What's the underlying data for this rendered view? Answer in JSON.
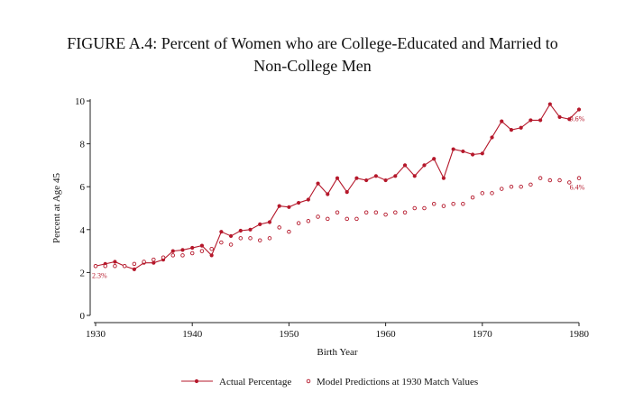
{
  "figure": {
    "title_line1": "FIGURE A.4: Percent of Women who are College-Educated and Married to",
    "title_line2": "Non-College Men"
  },
  "colors": {
    "series": "#b5182b",
    "axis": "#222222",
    "text": "#111111"
  },
  "chart_data": {
    "type": "line",
    "xlabel": "Birth Year",
    "ylabel": "Percent at Age 45",
    "xlim": [
      1930,
      1980
    ],
    "ylim": [
      0,
      10
    ],
    "xticks": [
      1930,
      1940,
      1950,
      1960,
      1970,
      1980
    ],
    "yticks": [
      0,
      2,
      4,
      6,
      8,
      10
    ],
    "grid": false,
    "legend_position": "bottom",
    "x": [
      1930,
      1931,
      1932,
      1933,
      1934,
      1935,
      1936,
      1937,
      1938,
      1939,
      1940,
      1941,
      1942,
      1943,
      1944,
      1945,
      1946,
      1947,
      1948,
      1949,
      1950,
      1951,
      1952,
      1953,
      1954,
      1955,
      1956,
      1957,
      1958,
      1959,
      1960,
      1961,
      1962,
      1963,
      1964,
      1965,
      1966,
      1967,
      1968,
      1969,
      1970,
      1971,
      1972,
      1973,
      1974,
      1975,
      1976,
      1977,
      1978,
      1979,
      1980
    ],
    "series": [
      {
        "name": "Actual Percentage",
        "style": "line-marker",
        "values": [
          2.3,
          2.4,
          2.5,
          2.3,
          2.15,
          2.45,
          2.45,
          2.6,
          3.0,
          3.05,
          3.15,
          3.25,
          2.8,
          3.9,
          3.7,
          3.95,
          4.0,
          4.25,
          4.35,
          5.1,
          5.05,
          5.25,
          5.4,
          6.15,
          5.65,
          6.4,
          5.75,
          6.4,
          6.3,
          6.5,
          6.3,
          6.5,
          7.0,
          6.5,
          7.0,
          7.3,
          6.4,
          7.75,
          7.65,
          7.5,
          7.55,
          8.3,
          9.05,
          8.65,
          8.75,
          9.1,
          9.1,
          9.85,
          9.25,
          9.15,
          9.6
        ]
      },
      {
        "name": "Model Predictions at 1930 Match Values",
        "style": "hollow-marker",
        "values": [
          2.3,
          2.3,
          2.3,
          2.3,
          2.4,
          2.5,
          2.6,
          2.7,
          2.8,
          2.8,
          2.9,
          3.0,
          3.1,
          3.4,
          3.3,
          3.6,
          3.6,
          3.5,
          3.6,
          4.1,
          3.9,
          4.3,
          4.4,
          4.6,
          4.5,
          4.8,
          4.5,
          4.5,
          4.8,
          4.8,
          4.7,
          4.8,
          4.8,
          5.0,
          5.0,
          5.2,
          5.1,
          5.2,
          5.2,
          5.5,
          5.7,
          5.7,
          5.9,
          6.0,
          6.0,
          6.1,
          6.4,
          6.3,
          6.3,
          6.2,
          6.4
        ]
      }
    ],
    "annotations": [
      {
        "text": "2.3%",
        "x": 1930,
        "y": 2.3,
        "side": "below"
      },
      {
        "text": "9.6%",
        "x": 1980,
        "y": 9.6,
        "side": "below"
      },
      {
        "text": "6.4%",
        "x": 1980,
        "y": 6.4,
        "side": "below"
      }
    ]
  }
}
